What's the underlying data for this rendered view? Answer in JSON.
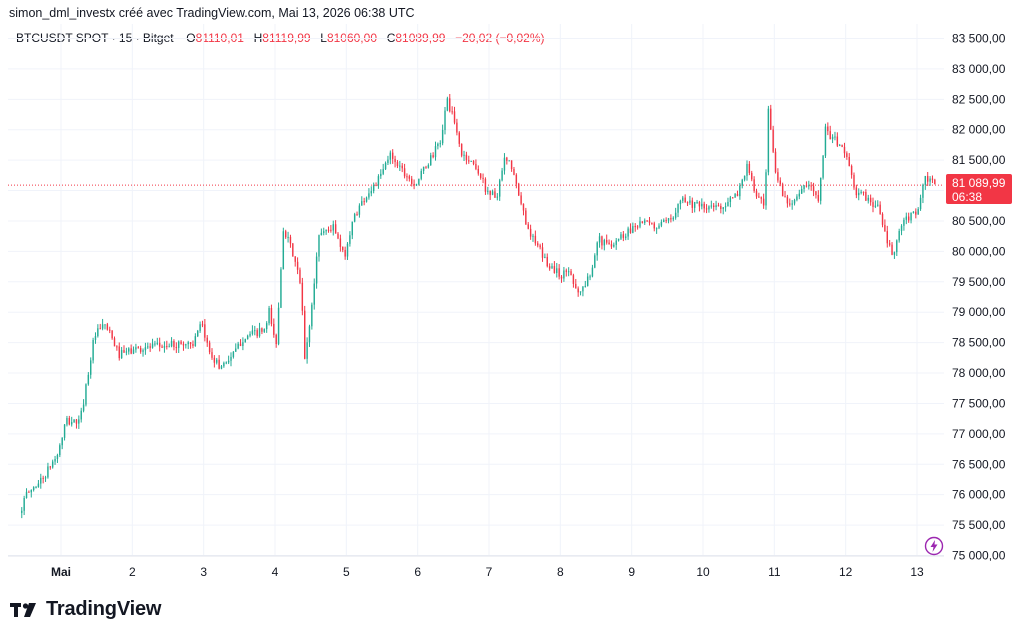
{
  "header": {
    "attribution": "simon_dml_investx créé avec TradingView.com, Mai 13, 2026 06:38 UTC"
  },
  "legend": {
    "symbol": "BTCUSDT SPOT · 15 · Bitget",
    "open_label": "O",
    "open": "81110,01",
    "high_label": "H",
    "high": "81119,99",
    "low_label": "L",
    "low": "81060,00",
    "close_label": "C",
    "close": "81089,99",
    "change": "−20,02 (−0,02%)"
  },
  "price_badge": {
    "price": "81 089,99",
    "time": "06:38"
  },
  "brand": {
    "name": "TradingView"
  },
  "colors": {
    "up": "#22ab94",
    "down": "#f23645",
    "grid": "#f0f3fa",
    "text": "#131722",
    "bolt": "#9c27b0"
  },
  "chart_data": {
    "type": "candlestick",
    "interval": "15",
    "y_ticks": [
      "83 500,00",
      "83 000,00",
      "82 500,00",
      "82 000,00",
      "81 500,00",
      "81 000,00",
      "80 500,00",
      "80 000,00",
      "79 500,00",
      "79 000,00",
      "78 500,00",
      "78 000,00",
      "77 500,00",
      "77 000,00",
      "76 500,00",
      "76 000,00",
      "75 500,00",
      "75 000,00"
    ],
    "y_tick_values": [
      83500,
      83000,
      82500,
      82000,
      81500,
      81000,
      80500,
      80000,
      79500,
      79000,
      78500,
      78000,
      77500,
      77000,
      76500,
      76000,
      75500,
      75000
    ],
    "ylim": [
      74850,
      83650
    ],
    "x_ticks": [
      "Mai",
      "2",
      "3",
      "4",
      "5",
      "6",
      "7",
      "8",
      "9",
      "10",
      "11",
      "12",
      "13"
    ],
    "x_range_days": [
      0.45,
      13.28
    ],
    "last_price": 81089.99,
    "price_path": [
      [
        0.45,
        75700
      ],
      [
        0.55,
        76000
      ],
      [
        0.8,
        76300
      ],
      [
        1.0,
        76700
      ],
      [
        1.1,
        77200
      ],
      [
        1.3,
        77200
      ],
      [
        1.5,
        78600
      ],
      [
        1.65,
        78800
      ],
      [
        1.85,
        78300
      ],
      [
        2.1,
        78400
      ],
      [
        2.5,
        78450
      ],
      [
        2.9,
        78500
      ],
      [
        3.0,
        78800
      ],
      [
        3.1,
        78400
      ],
      [
        3.25,
        78100
      ],
      [
        3.45,
        78300
      ],
      [
        3.6,
        78600
      ],
      [
        3.9,
        78700
      ],
      [
        3.95,
        79000
      ],
      [
        4.05,
        78450
      ],
      [
        4.15,
        80400
      ],
      [
        4.3,
        79900
      ],
      [
        4.4,
        79400
      ],
      [
        4.45,
        78200
      ],
      [
        4.55,
        79100
      ],
      [
        4.65,
        80300
      ],
      [
        4.85,
        80400
      ],
      [
        5.0,
        79900
      ],
      [
        5.15,
        80600
      ],
      [
        5.3,
        80900
      ],
      [
        5.5,
        81200
      ],
      [
        5.65,
        81600
      ],
      [
        5.85,
        81300
      ],
      [
        6.0,
        81100
      ],
      [
        6.2,
        81500
      ],
      [
        6.35,
        81800
      ],
      [
        6.45,
        82500
      ],
      [
        6.55,
        82100
      ],
      [
        6.65,
        81600
      ],
      [
        6.85,
        81400
      ],
      [
        7.0,
        81000
      ],
      [
        7.15,
        80900
      ],
      [
        7.25,
        81500
      ],
      [
        7.35,
        81400
      ],
      [
        7.45,
        80900
      ],
      [
        7.55,
        80500
      ],
      [
        7.65,
        80200
      ],
      [
        7.85,
        79800
      ],
      [
        8.05,
        79600
      ],
      [
        8.15,
        79700
      ],
      [
        8.3,
        79300
      ],
      [
        8.45,
        79600
      ],
      [
        8.55,
        80200
      ],
      [
        8.7,
        80100
      ],
      [
        8.95,
        80300
      ],
      [
        9.15,
        80500
      ],
      [
        9.35,
        80400
      ],
      [
        9.6,
        80500
      ],
      [
        9.7,
        80900
      ],
      [
        9.85,
        80800
      ],
      [
        10.05,
        80700
      ],
      [
        10.3,
        80750
      ],
      [
        10.5,
        80900
      ],
      [
        10.65,
        81400
      ],
      [
        10.75,
        81000
      ],
      [
        10.9,
        80700
      ],
      [
        10.95,
        82300
      ],
      [
        11.05,
        81300
      ],
      [
        11.2,
        80800
      ],
      [
        11.35,
        80900
      ],
      [
        11.5,
        81100
      ],
      [
        11.65,
        80900
      ],
      [
        11.75,
        82000
      ],
      [
        11.9,
        81800
      ],
      [
        12.05,
        81600
      ],
      [
        12.15,
        81000
      ],
      [
        12.3,
        80900
      ],
      [
        12.5,
        80700
      ],
      [
        12.6,
        80200
      ],
      [
        12.7,
        79900
      ],
      [
        12.8,
        80400
      ],
      [
        12.95,
        80600
      ],
      [
        13.05,
        80700
      ],
      [
        13.15,
        81200
      ],
      [
        13.28,
        81090
      ]
    ]
  }
}
